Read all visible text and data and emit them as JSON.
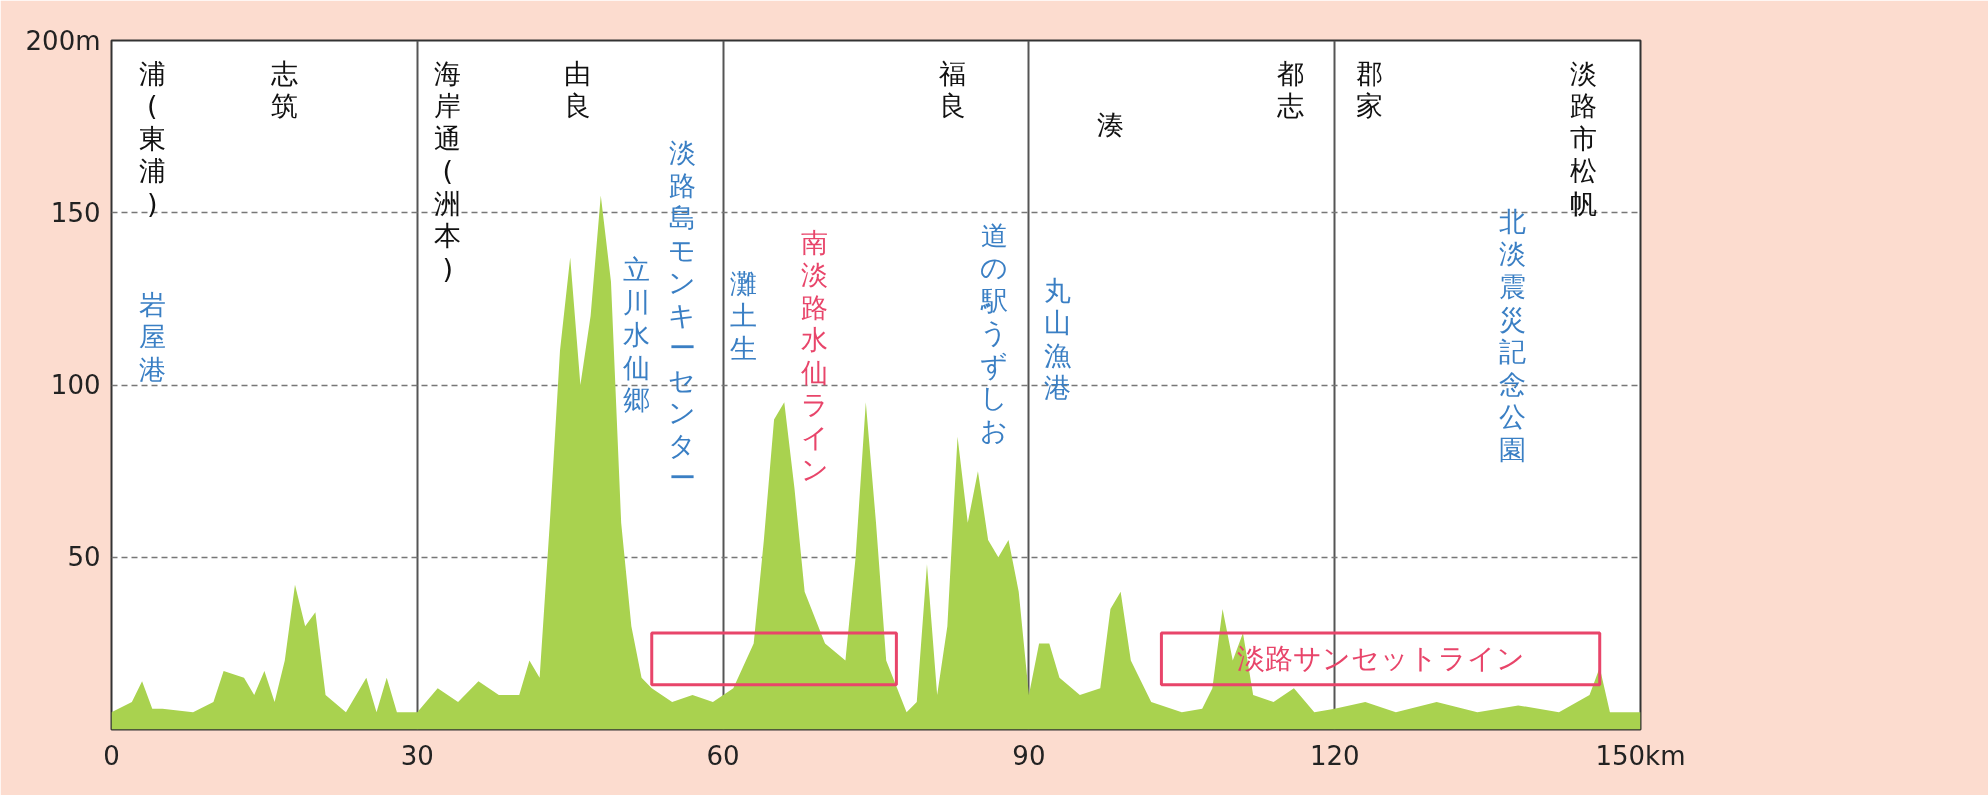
{
  "chart_data": {
    "type": "area",
    "grid": true,
    "x": [
      0,
      2,
      3,
      4,
      5,
      8,
      10,
      11,
      13,
      14,
      15,
      16,
      17,
      18,
      19,
      20,
      21,
      23,
      25,
      26,
      27,
      28,
      30,
      32,
      34,
      36,
      38,
      40,
      41,
      42,
      43,
      44,
      45,
      46,
      47,
      48,
      49,
      50,
      51,
      52,
      53,
      55,
      57,
      59,
      61,
      63,
      64,
      65,
      66,
      67,
      68,
      70,
      72,
      73,
      74,
      75,
      76,
      78,
      79,
      80,
      81,
      82,
      83,
      84,
      85,
      86,
      87,
      88,
      89,
      90,
      91,
      92,
      93,
      95,
      97,
      98,
      99,
      100,
      102,
      105,
      107,
      108,
      109,
      110,
      111,
      112,
      114,
      116,
      118,
      120,
      123,
      126,
      130,
      134,
      138,
      142,
      145,
      146,
      147,
      150
    ],
    "series": [
      {
        "color": "#a9d24f",
        "values": [
          5,
          8,
          14,
          6,
          6,
          5,
          8,
          17,
          15,
          10,
          17,
          8,
          20,
          42,
          30,
          34,
          10,
          5,
          15,
          5,
          15,
          5,
          5,
          12,
          8,
          14,
          10,
          10,
          20,
          15,
          60,
          110,
          137,
          100,
          120,
          155,
          130,
          60,
          30,
          15,
          12,
          8,
          10,
          8,
          12,
          25,
          55,
          90,
          95,
          70,
          40,
          25,
          20,
          50,
          95,
          60,
          20,
          5,
          8,
          48,
          10,
          30,
          85,
          60,
          75,
          55,
          50,
          55,
          40,
          10,
          25,
          25,
          15,
          10,
          12,
          35,
          40,
          20,
          8,
          5,
          6,
          12,
          35,
          20,
          28,
          10,
          8,
          12,
          5,
          6,
          8,
          5,
          8,
          5,
          7,
          5,
          10,
          18,
          5,
          5
        ]
      }
    ],
    "xlim": [
      0,
      150
    ],
    "ylim": [
      0,
      200
    ],
    "xticks": [
      0,
      30,
      60,
      90,
      120,
      {
        "value": 150,
        "label": "150km"
      }
    ],
    "yticks": [
      50,
      100,
      150,
      {
        "value": 200,
        "label": "200m"
      }
    ],
    "annotations": [
      "浦(東浦)",
      "志筑",
      "海岸通(洲本)",
      "由良",
      "福良",
      "湊",
      "都志",
      "郡家",
      "淡路市松帆",
      "岩屋港",
      "立川水仙郷",
      "淡路島モンキーセンター",
      "灘土生",
      "南淡路水仙ライン",
      "道の駅うずしお",
      "丸山漁港",
      "北淡震災記念公園",
      "淡路サンセットライン"
    ]
  }
}
